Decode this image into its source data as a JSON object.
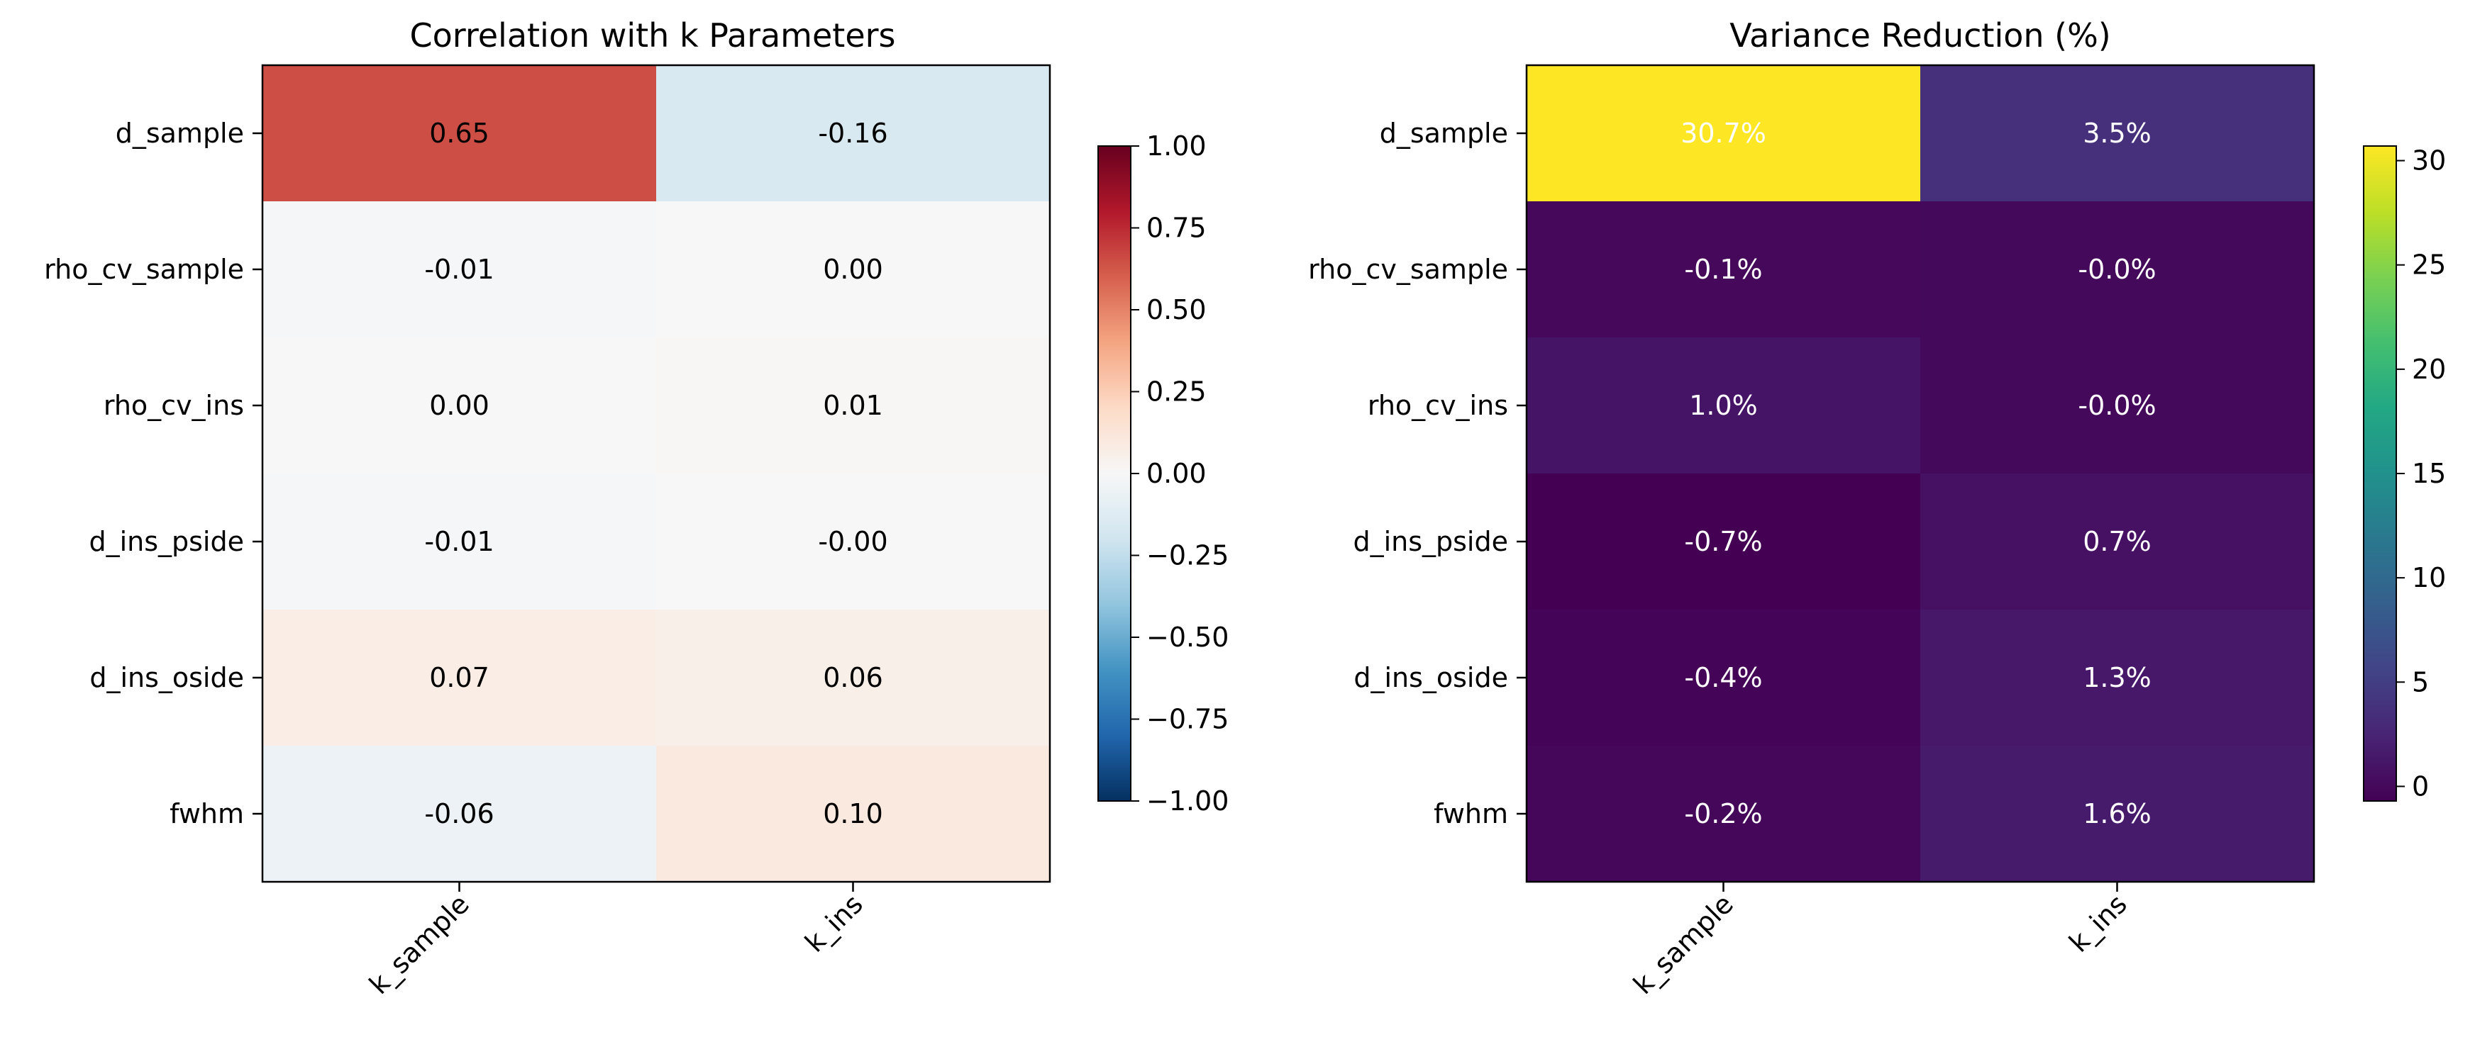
{
  "chart_data": [
    {
      "type": "heatmap",
      "title": "Correlation with k Parameters",
      "rows": [
        "d_sample",
        "rho_cv_sample",
        "rho_cv_ins",
        "d_ins_pside",
        "d_ins_oside",
        "fwhm"
      ],
      "columns": [
        "k_sample",
        "k_ins"
      ],
      "values": [
        [
          0.65,
          -0.16
        ],
        [
          -0.01,
          0.0
        ],
        [
          0.0,
          0.01
        ],
        [
          -0.01,
          -0.0
        ],
        [
          0.07,
          0.06
        ],
        [
          -0.06,
          0.1
        ]
      ],
      "cell_labels": [
        [
          "0.65",
          "-0.16"
        ],
        [
          "-0.01",
          "0.00"
        ],
        [
          "0.00",
          "0.01"
        ],
        [
          "-0.01",
          "-0.00"
        ],
        [
          "0.07",
          "0.06"
        ],
        [
          "-0.06",
          "0.10"
        ]
      ],
      "colormap": "RdBu_r",
      "vmin": -1,
      "vmax": 1,
      "colorbar_ticks": [
        "1.00",
        "0.75",
        "0.50",
        "0.25",
        "0.00",
        "−0.25",
        "−0.50",
        "−0.75",
        "−1.00"
      ],
      "colorbar_tick_values": [
        1,
        0.75,
        0.5,
        0.25,
        0,
        -0.25,
        -0.5,
        -0.75,
        -1
      ]
    },
    {
      "type": "heatmap",
      "title": "Variance Reduction (%)",
      "rows": [
        "d_sample",
        "rho_cv_sample",
        "rho_cv_ins",
        "d_ins_pside",
        "d_ins_oside",
        "fwhm"
      ],
      "columns": [
        "k_sample",
        "k_ins"
      ],
      "values": [
        [
          30.7,
          3.5
        ],
        [
          -0.1,
          -0.0
        ],
        [
          1.0,
          -0.0
        ],
        [
          -0.7,
          0.7
        ],
        [
          -0.4,
          1.3
        ],
        [
          -0.2,
          1.6
        ]
      ],
      "cell_labels": [
        [
          "30.7%",
          "3.5%"
        ],
        [
          "-0.1%",
          "-0.0%"
        ],
        [
          "1.0%",
          "-0.0%"
        ],
        [
          "-0.7%",
          "0.7%"
        ],
        [
          "-0.4%",
          "1.3%"
        ],
        [
          "-0.2%",
          "1.6%"
        ]
      ],
      "colormap": "viridis",
      "vmin": -0.7,
      "vmax": 30.7,
      "colorbar_ticks": [
        "30",
        "25",
        "20",
        "15",
        "10",
        "5",
        "0"
      ],
      "colorbar_tick_values": [
        30,
        25,
        20,
        15,
        10,
        5,
        0
      ]
    }
  ]
}
